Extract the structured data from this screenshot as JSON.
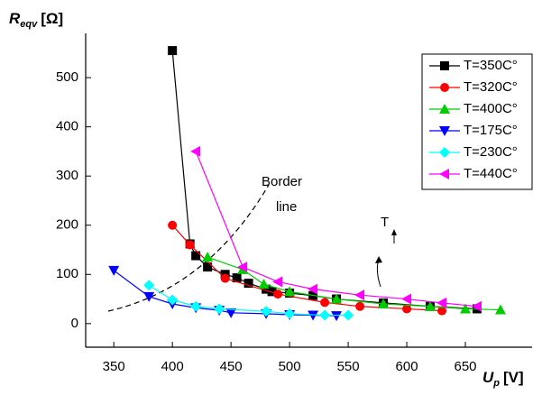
{
  "chart_data": {
    "type": "line",
    "ylabel": {
      "symbol": "R",
      "subscript": "eqv",
      "unit": "[Ω]"
    },
    "xlabel": {
      "symbol": "U",
      "subscript": "p",
      "unit": "[V]"
    },
    "xlim": [
      326,
      700
    ],
    "xticks": [
      350,
      400,
      450,
      500,
      550,
      600,
      650
    ],
    "ylim": [
      -48,
      590
    ],
    "yticks": [
      0,
      100,
      200,
      300,
      400,
      500
    ],
    "legend_position": "upper right",
    "series": [
      {
        "name": "T=350C°",
        "color": "#000000",
        "marker": "square",
        "x": [
          400,
          415,
          420,
          430,
          445,
          455,
          465,
          480,
          485,
          500,
          520,
          540,
          580,
          620,
          660
        ],
        "values": [
          555,
          162,
          138,
          115,
          100,
          93,
          82,
          70,
          65,
          62,
          57,
          50,
          42,
          35,
          30
        ]
      },
      {
        "name": "T=320C°",
        "color": "#ff0000",
        "marker": "circle",
        "x": [
          400,
          415,
          445,
          490,
          530,
          560,
          600,
          630
        ],
        "values": [
          200,
          160,
          92,
          60,
          43,
          35,
          30,
          26
        ]
      },
      {
        "name": "T=400C°",
        "color": "#00cc00",
        "marker": "triangle-up",
        "x": [
          430,
          460,
          478,
          500,
          540,
          580,
          620,
          650,
          680
        ],
        "values": [
          135,
          110,
          80,
          65,
          50,
          40,
          35,
          30,
          28
        ]
      },
      {
        "name": "T=175C°",
        "color": "#0000ff",
        "marker": "triangle-down",
        "x": [
          350,
          380,
          400,
          420,
          440,
          450,
          480,
          500,
          520,
          540
        ],
        "values": [
          108,
          55,
          40,
          32,
          27,
          22,
          20,
          18,
          17,
          16
        ]
      },
      {
        "name": "T=230C°",
        "color": "#00ffff",
        "marker": "diamond",
        "x": [
          380,
          400,
          420,
          440,
          480,
          500,
          530,
          550
        ],
        "values": [
          78,
          48,
          35,
          30,
          25,
          20,
          17,
          17
        ]
      },
      {
        "name": "T=440C°",
        "color": "#ff00ff",
        "marker": "triangle-left",
        "x": [
          420,
          460,
          490,
          520,
          560,
          600,
          630,
          660
        ],
        "values": [
          350,
          115,
          85,
          70,
          58,
          50,
          42,
          35
        ]
      }
    ],
    "border_label": [
      "Border",
      "line"
    ],
    "arrow_label": "T"
  }
}
